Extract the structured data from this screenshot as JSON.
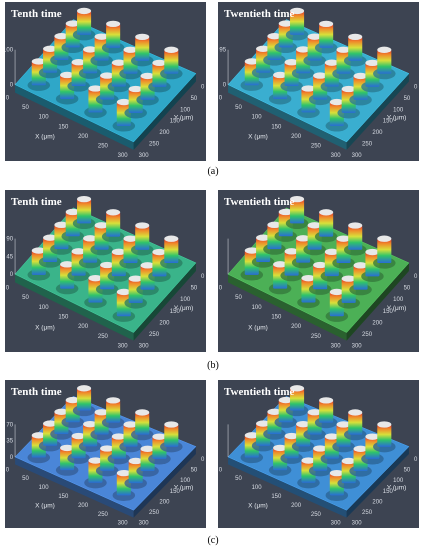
{
  "figure": {
    "rows": [
      {
        "caption": "(a)",
        "panels": [
          {
            "title": "Tenth time",
            "z_ticks": [
              "100",
              "0"
            ],
            "x_ticks": [
              "0",
              "50",
              "100",
              "150",
              "200",
              "250",
              "300"
            ],
            "y_ticks": [
              "0",
              "50",
              "100",
              "150",
              "200",
              "250",
              "300"
            ],
            "x_label": "X (μm)",
            "y_label": "Y (μm)",
            "surface_color": "#2fa7c8",
            "pillar_rows": 4,
            "pillar_cols": 5
          },
          {
            "title": "Twentieth time",
            "z_ticks": [
              "95",
              "0"
            ],
            "x_ticks": [
              "0",
              "50",
              "100",
              "150",
              "200",
              "250",
              "300"
            ],
            "y_ticks": [
              "0",
              "50",
              "100",
              "150",
              "200",
              "250",
              "300"
            ],
            "x_label": "X (μm)",
            "y_label": "Y (μm)",
            "surface_color": "#3aaed0",
            "pillar_rows": 4,
            "pillar_cols": 5
          }
        ]
      },
      {
        "caption": "(b)",
        "panels": [
          {
            "title": "Tenth time",
            "z_ticks": [
              "90",
              "45",
              "0"
            ],
            "x_ticks": [
              "0",
              "50",
              "100",
              "150",
              "200",
              "250",
              "300"
            ],
            "y_ticks": [
              "0",
              "50",
              "100",
              "150",
              "200",
              "250",
              "300"
            ],
            "x_label": "X (μm)",
            "y_label": "Y (μm)",
            "surface_color": "#3ab48a",
            "pillar_rows": 4,
            "pillar_cols": 5
          },
          {
            "title": "Twentieth time",
            "z_ticks": [],
            "x_ticks": [
              "0",
              "50",
              "100",
              "150",
              "200",
              "250",
              "300"
            ],
            "y_ticks": [
              "0",
              "50",
              "100",
              "150",
              "200",
              "250",
              "300"
            ],
            "x_label": "X (μm)",
            "y_label": "Y (μm)",
            "surface_color": "#4cb056",
            "pillar_rows": 4,
            "pillar_cols": 5
          }
        ]
      },
      {
        "caption": "(c)",
        "panels": [
          {
            "title": "Tenth time",
            "z_ticks": [
              "70",
              "35",
              "0"
            ],
            "x_ticks": [
              "0",
              "50",
              "100",
              "150",
              "200",
              "250",
              "300"
            ],
            "y_ticks": [
              "0",
              "50",
              "100",
              "150",
              "200",
              "250",
              "300"
            ],
            "x_label": "X (μm)",
            "y_label": "Y (μm)",
            "surface_color": "#4a86d8",
            "pillar_rows": 4,
            "pillar_cols": 5
          },
          {
            "title": "Twentieth time",
            "z_ticks": [],
            "x_ticks": [
              "0",
              "50",
              "100",
              "150",
              "200",
              "250",
              "300"
            ],
            "y_ticks": [
              "0",
              "50",
              "100",
              "150",
              "200",
              "250",
              "300"
            ],
            "x_label": "X (μm)",
            "y_label": "Y (μm)",
            "surface_color": "#3f8fd6",
            "pillar_rows": 4,
            "pillar_cols": 5
          }
        ]
      }
    ]
  }
}
